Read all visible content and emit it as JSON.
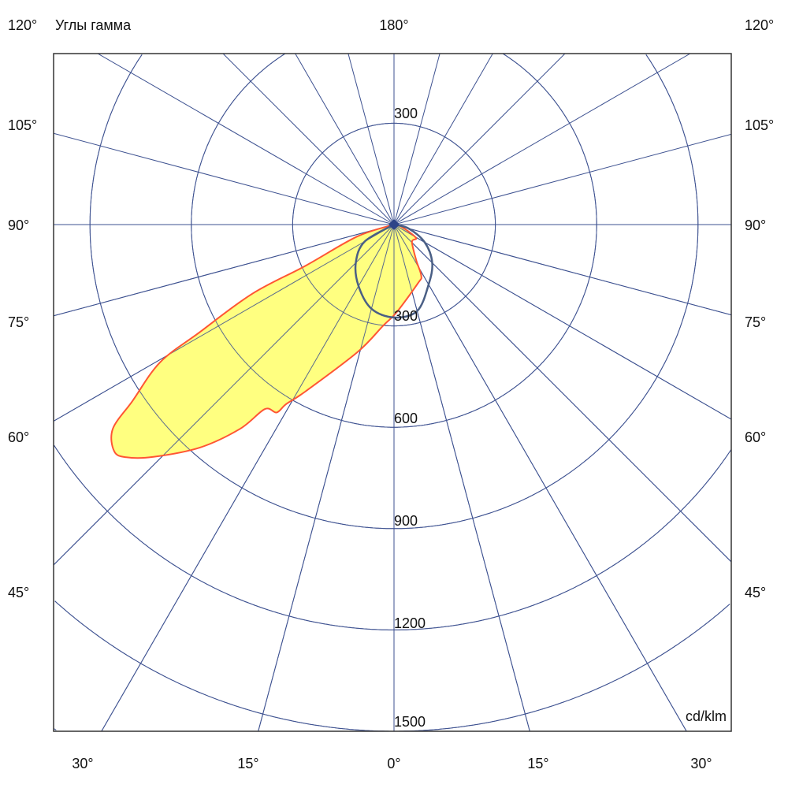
{
  "chart_data": {
    "type": "polar",
    "title": "Углы гамма",
    "unit_label": "cd/klm",
    "top_label": "180°",
    "side_labels_left": [
      "120°",
      "105°",
      "90°",
      "75°",
      "60°",
      "45°"
    ],
    "side_labels_right": [
      "120°",
      "105°",
      "90°",
      "75°",
      "60°",
      "45°"
    ],
    "bottom_labels": [
      "30°",
      "15°",
      "0°",
      "15°",
      "30°"
    ],
    "ring_labels": [
      "300",
      "300",
      "600",
      "900",
      "1200",
      "1500"
    ],
    "radial_max": 1500,
    "ring_step": 300,
    "angle_step_deg": 15,
    "grid": true,
    "colors": {
      "grid": "#3d5190",
      "series1_line": "#ff5533",
      "series1_fill": "#ffff80",
      "series2_line": "#4a5f85",
      "center_marker": "#2e4488"
    },
    "series": [
      {
        "gamma_deg": [
          -90,
          -72,
          -65,
          -64,
          -61,
          -59.5,
          -56,
          -54,
          -51,
          -49,
          -46,
          -41,
          -37,
          -35,
          -32,
          -31,
          -28,
          -16,
          -6,
          1.5,
          22,
          28,
          32,
          46,
          59,
          73,
          90
        ],
        "values": [
          0,
          115,
          290,
          467,
          660,
          804,
          934,
          1029,
          1066,
          1050,
          990,
          874,
          757,
          667,
          656,
          620,
          560,
          393,
          300,
          261,
          188,
          172,
          124,
          74,
          76,
          24,
          0
        ]
      },
      {
        "gamma_deg": [
          -90,
          -60,
          -45,
          -30,
          -15,
          0,
          15,
          30,
          45,
          60,
          75,
          90
        ],
        "values": [
          0,
          100,
          160,
          210,
          258,
          275,
          265,
          205,
          160,
          105,
          45,
          0
        ]
      }
    ]
  }
}
